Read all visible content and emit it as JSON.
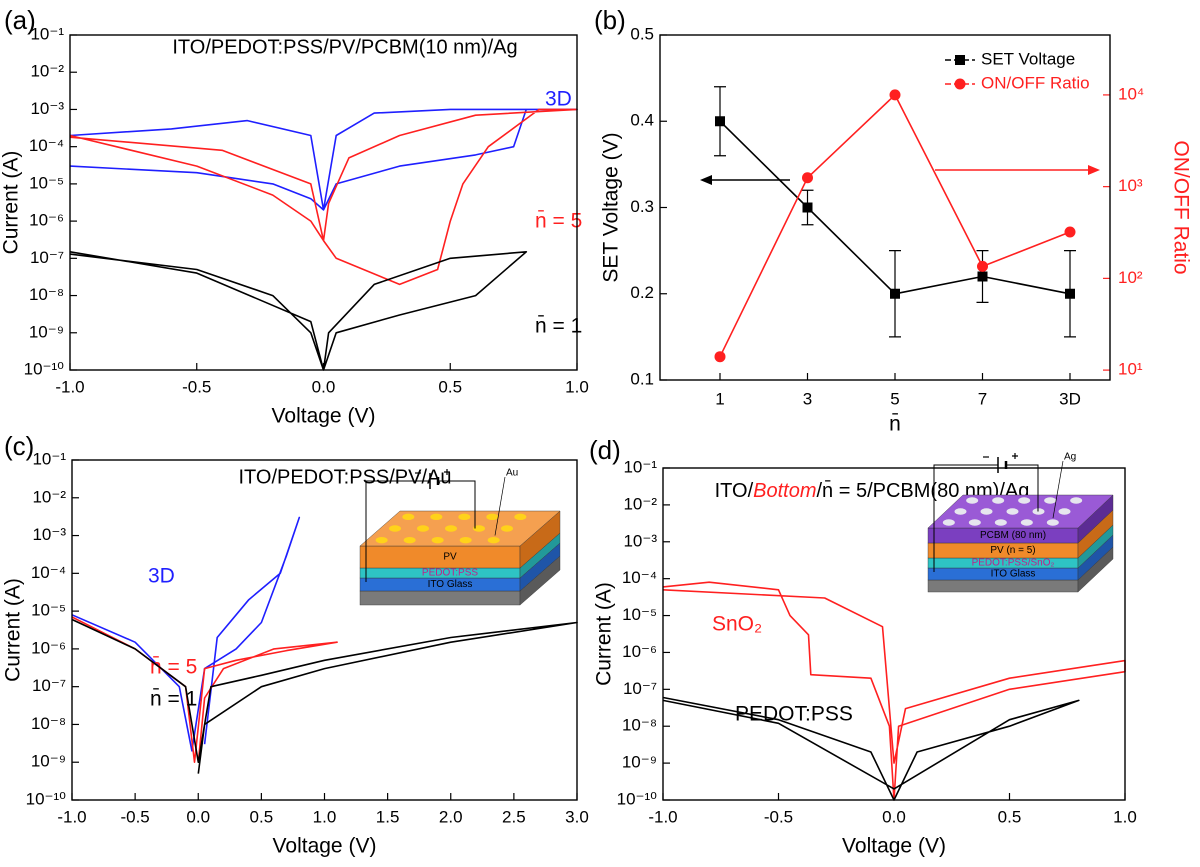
{
  "chart_data": [
    {
      "type": "line",
      "panel_label": "(a)",
      "title": "ITO/PEDOT:PSS/PV/PCBM(10 nm)/Ag",
      "x_label": "Voltage (V)",
      "y_label": "Current (A)",
      "ylog": true,
      "xlim": [
        -1,
        1
      ],
      "ylim": [
        1e-10,
        0.1
      ],
      "xticks": [
        {
          "value": -1,
          "label": "-1.0"
        },
        -0.5,
        {
          "value": 0,
          "label": "0.0"
        },
        0.5,
        {
          "value": 1,
          "label": "1.0"
        }
      ],
      "yticks": [
        {
          "value": 1e-10,
          "label": "10⁻¹⁰"
        },
        {
          "value": 1e-09,
          "label": "10⁻⁹"
        },
        {
          "value": 1e-08,
          "label": "10⁻⁸"
        },
        {
          "value": 1e-07,
          "label": "10⁻⁷"
        },
        {
          "value": 1e-06,
          "label": "10⁻⁶"
        },
        {
          "value": 1e-05,
          "label": "10⁻⁵"
        },
        {
          "value": 0.0001,
          "label": "10⁻⁴"
        },
        {
          "value": 0.001,
          "label": "10⁻³"
        },
        {
          "value": 0.01,
          "label": "10⁻²"
        },
        {
          "value": 0.1,
          "label": "10⁻¹"
        }
      ],
      "series": [
        {
          "name": "3D",
          "color": "#1f1fff",
          "x": [
            -1,
            -0.5,
            -0.2,
            -0.05,
            0,
            0.05,
            0.3,
            0.6,
            0.75,
            0.8,
            1,
            0.5,
            0.2,
            0.05,
            0,
            -0.05,
            -0.3,
            -0.6,
            -1
          ],
          "values": [
            3e-05,
            2e-05,
            1e-05,
            4e-06,
            2e-06,
            1e-05,
            3e-05,
            6e-05,
            0.0001,
            0.001,
            0.001,
            0.001,
            0.0008,
            0.0002,
            2e-06,
            0.0002,
            0.0005,
            0.0003,
            0.0002
          ]
        },
        {
          "name": "n̄ = 5",
          "color": "#ff2020",
          "x": [
            -1,
            -0.5,
            -0.2,
            -0.05,
            0,
            0.05,
            0.3,
            0.45,
            0.5,
            0.55,
            0.65,
            0.85,
            1,
            0.6,
            0.3,
            0.1,
            0.02,
            0,
            -0.05,
            -0.4,
            -1
          ],
          "values": [
            0.0002,
            3e-05,
            5e-06,
            1e-06,
            3e-07,
            1e-07,
            2e-08,
            5e-08,
            1e-06,
            1e-05,
            0.0001,
            0.001,
            0.001,
            0.0007,
            0.0002,
            5e-05,
            3e-06,
            3e-07,
            1e-05,
            8e-05,
            0.00018
          ]
        },
        {
          "name": "n̄ = 1",
          "color": "#000000",
          "x": [
            -1,
            -0.5,
            -0.2,
            -0.05,
            0,
            0.05,
            0.3,
            0.6,
            0.8,
            0.5,
            0.2,
            0.02,
            0,
            -0.05,
            -0.5,
            -1
          ],
          "values": [
            1.3e-07,
            5e-08,
            1e-08,
            1e-09,
            1e-10,
            1e-09,
            3e-09,
            1e-08,
            1.5e-07,
            1e-07,
            2e-08,
            1e-09,
            1e-10,
            2e-09,
            4e-08,
            1.5e-07
          ]
        }
      ]
    },
    {
      "type": "line",
      "panel_label": "(b)",
      "x_label": "n̄",
      "y_label": "SET Voltage (V)",
      "y2_label": "ON/OFF Ratio",
      "categories": [
        "1",
        "3",
        "5",
        "7",
        "3D"
      ],
      "legend": "upper right",
      "ylim": [
        0.1,
        0.5
      ],
      "yticks": [
        0.1,
        0.2,
        0.3,
        0.4,
        0.5
      ],
      "y2log": true,
      "y2lim": [
        7.8,
        45000
      ],
      "y2ticks": [
        {
          "value": 10,
          "label": "10¹"
        },
        {
          "value": 100,
          "label": "10²"
        },
        {
          "value": 1000,
          "label": "10³"
        },
        {
          "value": 10000,
          "label": "10⁴"
        }
      ],
      "series": [
        {
          "name": "SET Voltage",
          "color": "#000000",
          "marker": "square",
          "values": [
            0.4,
            0.3,
            0.2,
            0.22,
            0.2
          ],
          "errors": [
            0.04,
            0.02,
            0.05,
            0.03,
            0.05
          ]
        },
        {
          "name": "ON/OFF Ratio",
          "color": "#ff2020",
          "marker": "circle",
          "axis": "y2",
          "values": [
            14,
            1250,
            10000,
            135,
            320
          ]
        }
      ]
    },
    {
      "type": "line",
      "panel_label": "(c)",
      "title": "ITO/PEDOT:PSS/PV/Au",
      "x_label": "Voltage (V)",
      "y_label": "Current (A)",
      "ylog": true,
      "xlim": [
        -1,
        3
      ],
      "ylim": [
        1e-10,
        0.1
      ],
      "xticks": [
        {
          "value": -1,
          "label": "-1.0"
        },
        -0.5,
        {
          "value": 0,
          "label": "0.0"
        },
        0.5,
        {
          "value": 1,
          "label": "1.0"
        },
        1.5,
        {
          "value": 2,
          "label": "2.0"
        },
        2.5,
        {
          "value": 3,
          "label": "3.0"
        }
      ],
      "yticks": [
        {
          "value": 1e-10,
          "label": "10⁻¹⁰"
        },
        {
          "value": 1e-09,
          "label": "10⁻⁹"
        },
        {
          "value": 1e-08,
          "label": "10⁻⁸"
        },
        {
          "value": 1e-07,
          "label": "10⁻⁷"
        },
        {
          "value": 1e-06,
          "label": "10⁻⁶"
        },
        {
          "value": 1e-05,
          "label": "10⁻⁵"
        },
        {
          "value": 0.0001,
          "label": "10⁻⁴"
        },
        {
          "value": 0.001,
          "label": "10⁻³"
        },
        {
          "value": 0.01,
          "label": "10⁻²"
        },
        {
          "value": 0.1,
          "label": "10⁻¹"
        }
      ],
      "inset_labels": [
        "Au",
        "PV",
        "PEDOT:PSS",
        "ITO Glass"
      ],
      "series": [
        {
          "name": "3D",
          "color": "#1f1fff",
          "x": [
            -1,
            -0.5,
            -0.15,
            -0.05,
            0.05,
            0.3,
            0.5,
            0.7,
            0.8,
            0.65,
            0.4,
            0.15,
            0.05
          ],
          "values": [
            8e-06,
            1.5e-06,
            1e-07,
            2e-09,
            3e-07,
            1e-06,
            5e-06,
            0.0003,
            0.003,
            0.0001,
            2e-05,
            2e-06,
            3e-09
          ]
        },
        {
          "name": "n̄ = 5",
          "color": "#ff2020",
          "x": [
            -1,
            -0.5,
            -0.1,
            -0.03,
            0.05,
            0.3,
            0.7,
            1.1,
            0.6,
            0.2,
            0.05,
            0
          ],
          "values": [
            7e-06,
            1e-06,
            1e-07,
            1e-09,
            3e-07,
            5e-07,
            9e-07,
            1.5e-06,
            1e-06,
            3e-07,
            5e-08,
            1e-09
          ]
        },
        {
          "name": "n̄ = 1",
          "color": "#000000",
          "x": [
            -1,
            -0.5,
            -0.1,
            0,
            0.1,
            0.5,
            1,
            2,
            3,
            2,
            1,
            0.5,
            0.05,
            0
          ],
          "values": [
            6e-06,
            1e-06,
            1e-07,
            1e-09,
            1e-07,
            2e-07,
            5e-07,
            2e-06,
            5e-06,
            1.5e-06,
            3e-07,
            1e-07,
            1e-08,
            5e-10
          ]
        }
      ]
    },
    {
      "type": "line",
      "panel_label": "(d)",
      "title": [
        "ITO/",
        "Bottom",
        "/n̄ = 5/PCBM(80 nm)/Ag"
      ],
      "x_label": "Voltage (V)",
      "y_label": "Current (A)",
      "ylog": true,
      "xlim": [
        -1,
        1
      ],
      "ylim": [
        1e-10,
        0.1
      ],
      "xticks": [
        {
          "value": -1,
          "label": "-1.0"
        },
        -0.5,
        {
          "value": 0,
          "label": "0.0"
        },
        0.5,
        {
          "value": 1,
          "label": "1.0"
        }
      ],
      "yticks": [
        {
          "value": 1e-10,
          "label": "10⁻¹⁰"
        },
        {
          "value": 1e-09,
          "label": "10⁻⁹"
        },
        {
          "value": 1e-08,
          "label": "10⁻⁸"
        },
        {
          "value": 1e-07,
          "label": "10⁻⁷"
        },
        {
          "value": 1e-06,
          "label": "10⁻⁶"
        },
        {
          "value": 1e-05,
          "label": "10⁻⁵"
        },
        {
          "value": 0.0001,
          "label": "10⁻⁴"
        },
        {
          "value": 0.001,
          "label": "10⁻³"
        },
        {
          "value": 0.01,
          "label": "10⁻²"
        },
        {
          "value": 0.1,
          "label": "10⁻¹"
        }
      ],
      "inset_labels": [
        "Ag",
        "PCBM (80 nm)",
        "PV (n = 5)",
        "PEDOT:PSS/SnO₂",
        "ITO Glass"
      ],
      "series": [
        {
          "name": "SnO₂",
          "color": "#ff2020",
          "x": [
            -1,
            -0.8,
            -0.5,
            -0.45,
            -0.37,
            -0.36,
            -0.1,
            -0.02,
            0,
            0.02,
            0.5,
            1,
            1,
            0.5,
            0.05,
            0,
            -0.05,
            -0.3,
            -1
          ],
          "values": [
            6e-05,
            8e-05,
            5e-05,
            1e-05,
            3e-06,
            2.5e-07,
            2e-07,
            1e-08,
            1e-10,
            1e-08,
            1e-07,
            3e-07,
            6e-07,
            2e-07,
            3e-08,
            1e-09,
            5e-06,
            3e-05,
            5e-05
          ]
        },
        {
          "name": "PEDOT:PSS",
          "color": "#000000",
          "x": [
            -1,
            -0.5,
            -0.1,
            0,
            0.1,
            0.5,
            0.8,
            0.5,
            0,
            -0.5,
            -1
          ],
          "values": [
            6e-08,
            1.5e-08,
            2e-09,
            1e-10,
            2e-09,
            1e-08,
            5e-08,
            1.5e-08,
            2e-10,
            1.2e-08,
            5e-08
          ]
        }
      ]
    }
  ]
}
